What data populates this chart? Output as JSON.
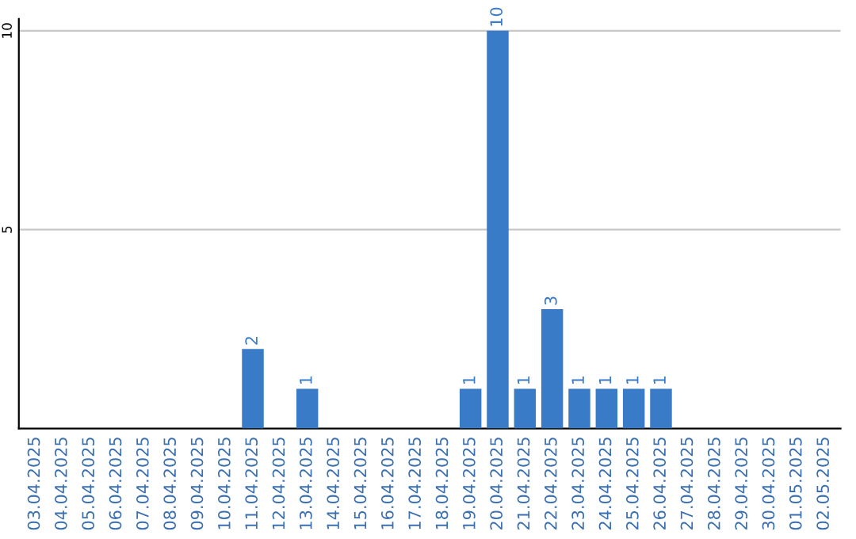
{
  "chart_data": {
    "type": "bar",
    "categories": [
      "03.04.2025",
      "04.04.2025",
      "05.04.2025",
      "06.04.2025",
      "07.04.2025",
      "08.04.2025",
      "09.04.2025",
      "10.04.2025",
      "11.04.2025",
      "12.04.2025",
      "13.04.2025",
      "14.04.2025",
      "15.04.2025",
      "16.04.2025",
      "17.04.2025",
      "18.04.2025",
      "19.04.2025",
      "20.04.2025",
      "21.04.2025",
      "22.04.2025",
      "23.04.2025",
      "24.04.2025",
      "25.04.2025",
      "26.04.2025",
      "27.04.2025",
      "28.04.2025",
      "29.04.2025",
      "30.04.2025",
      "01.05.2025",
      "02.05.2025"
    ],
    "values": [
      0,
      0,
      0,
      0,
      0,
      0,
      0,
      0,
      2,
      0,
      1,
      0,
      0,
      0,
      0,
      0,
      1,
      10,
      1,
      3,
      1,
      1,
      1,
      1,
      0,
      0,
      0,
      0,
      0,
      0
    ],
    "value_labels": [
      null,
      null,
      null,
      null,
      null,
      null,
      null,
      null,
      "2",
      null,
      "1",
      null,
      null,
      null,
      null,
      null,
      "1",
      "10",
      "1",
      "3",
      "1",
      "1",
      "1",
      "1",
      null,
      null,
      null,
      null,
      null,
      null
    ],
    "color": "#3a7bc8",
    "ylim": [
      0,
      10.3
    ],
    "yticks": [
      5,
      10
    ],
    "grid": "y"
  }
}
